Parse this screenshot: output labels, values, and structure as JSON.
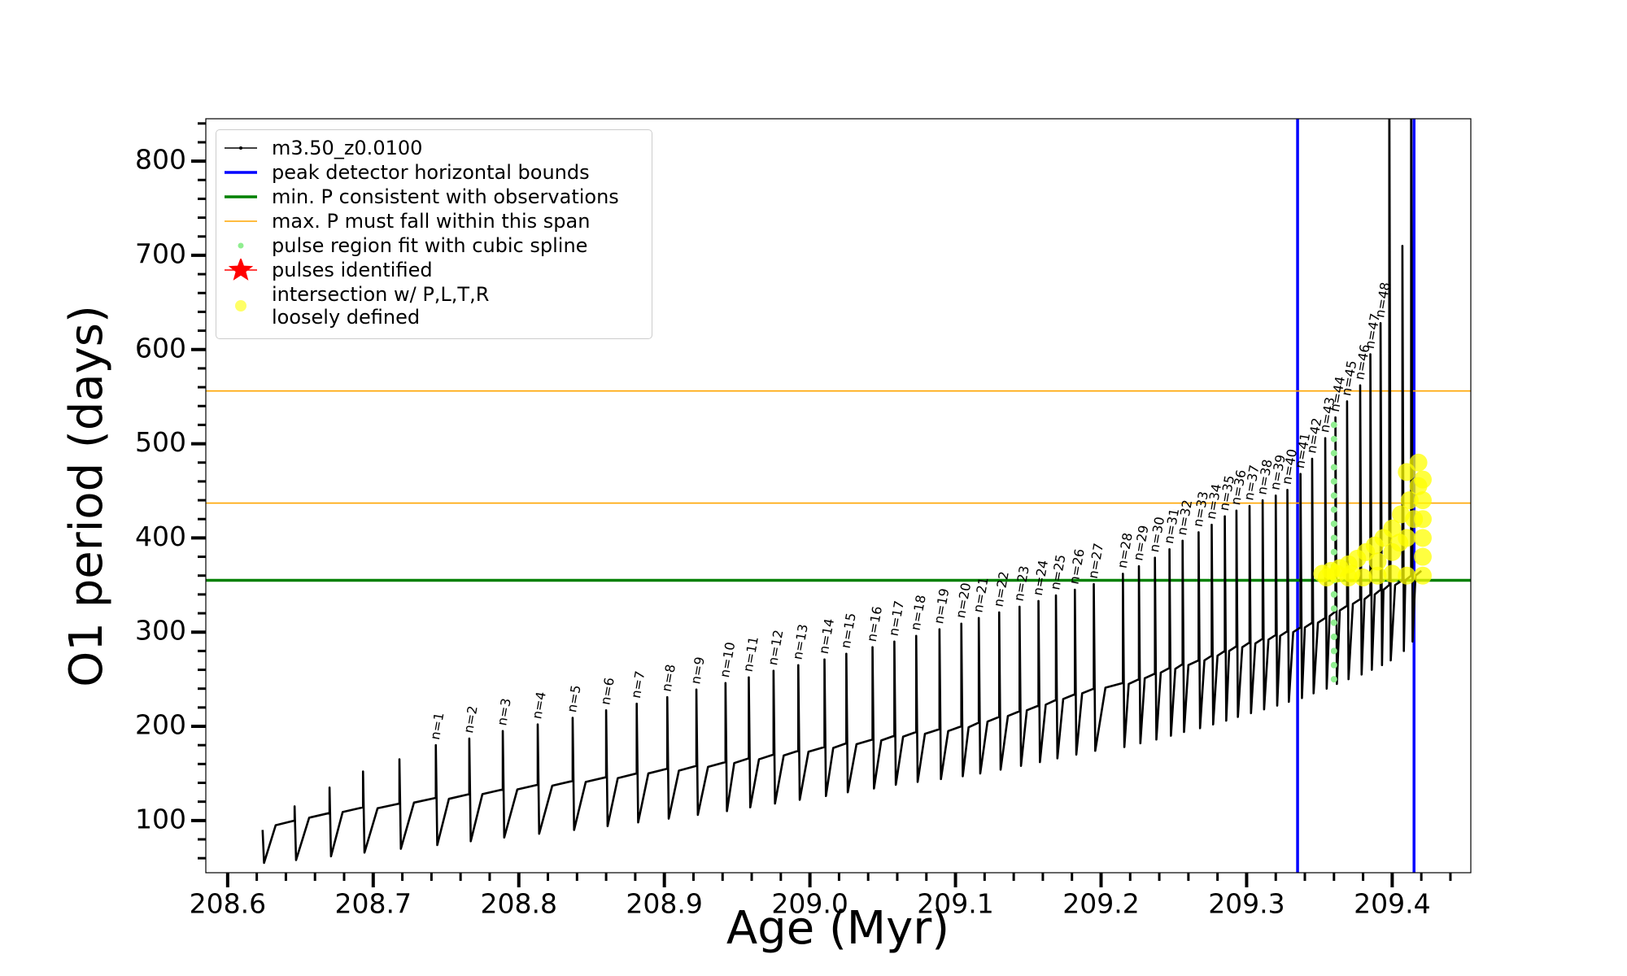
{
  "chart_data": {
    "type": "line",
    "xlabel": "Age (Myr)",
    "ylabel": "O1 period (days)",
    "xlim": [
      208.585,
      209.454
    ],
    "ylim": [
      44.6,
      845
    ],
    "xticks": [
      208.6,
      208.7,
      208.8,
      208.9,
      {
        "value": 209,
        "label": "209.0"
      },
      209.1,
      209.2,
      209.3,
      209.4
    ],
    "yticks": [
      100,
      200,
      300,
      400,
      500,
      600,
      700,
      800
    ],
    "xticks_minor": [
      208.62,
      208.64,
      208.66,
      208.68,
      208.72,
      208.74,
      208.76,
      208.78,
      208.82,
      208.84,
      208.86,
      208.88,
      208.92,
      208.94,
      208.96,
      208.98,
      209.02,
      209.04,
      209.06,
      209.08,
      209.12,
      209.14,
      209.16,
      209.18,
      209.22,
      209.24,
      209.26,
      209.28,
      209.32,
      209.34,
      209.36,
      209.38,
      209.42,
      209.44
    ],
    "yticks_minor": [
      60,
      80,
      120,
      140,
      160,
      180,
      220,
      240,
      260,
      280,
      320,
      340,
      360,
      380,
      420,
      440,
      460,
      480,
      520,
      540,
      560,
      580,
      620,
      640,
      660,
      680,
      720,
      740,
      760,
      780,
      820,
      840
    ],
    "grid": false,
    "legend": "upper left",
    "series": [
      {
        "name": "m3.50_z0.0100",
        "type": "line",
        "color": "#000000",
        "x": [
          208.624,
          208.625,
          208.633,
          208.646,
          208.646,
          208.647,
          208.656,
          208.67,
          208.67,
          208.671,
          208.679,
          208.693,
          208.693,
          208.694,
          208.703,
          208.718,
          208.718,
          208.719,
          208.728,
          208.743,
          208.743,
          208.744,
          208.752,
          208.766,
          208.766,
          208.767,
          208.775,
          208.789,
          208.789,
          208.79,
          208.799,
          208.813,
          208.813,
          208.814,
          208.823,
          208.837,
          208.837,
          208.838,
          208.846,
          208.86,
          208.86,
          208.861,
          208.868,
          208.881,
          208.881,
          208.882,
          208.889,
          208.902,
          208.902,
          208.903,
          208.91,
          208.922,
          208.922,
          208.923,
          208.93,
          208.942,
          208.942,
          208.943,
          208.948,
          208.958,
          208.958,
          208.959,
          208.965,
          208.975,
          208.975,
          208.976,
          208.982,
          208.992,
          208.992,
          208.993,
          208.999,
          209.01,
          209.01,
          209.011,
          209.016,
          209.025,
          209.025,
          209.026,
          209.032,
          209.043,
          209.043,
          209.044,
          209.049,
          209.058,
          209.058,
          209.059,
          209.064,
          209.073,
          209.073,
          209.074,
          209.079,
          209.089,
          209.089,
          209.09,
          209.095,
          209.104,
          209.104,
          209.105,
          209.109,
          209.116,
          209.116,
          209.117,
          209.122,
          209.13,
          209.13,
          209.131,
          209.136,
          209.144,
          209.144,
          209.145,
          209.149,
          209.157,
          209.157,
          209.158,
          209.162,
          209.169,
          209.169,
          209.17,
          209.174,
          209.182,
          209.182,
          209.183,
          209.187,
          209.195,
          209.195,
          209.196,
          209.203,
          209.215,
          209.215,
          209.216,
          209.219,
          209.226,
          209.226,
          209.227,
          209.23,
          209.237,
          209.237,
          209.238,
          209.241,
          209.247,
          209.247,
          209.248,
          209.251,
          209.256,
          209.256,
          209.257,
          209.26,
          209.267,
          209.267,
          209.268,
          209.271,
          209.276,
          209.276,
          209.277,
          209.28,
          209.285,
          209.285,
          209.286,
          209.288,
          209.293,
          209.293,
          209.294,
          209.297,
          209.302,
          209.302,
          209.303,
          209.306,
          209.311,
          209.311,
          209.312,
          209.315,
          209.32,
          209.32,
          209.321,
          209.323,
          209.328,
          209.328,
          209.329,
          209.332,
          209.337,
          209.337,
          209.338,
          209.34,
          209.345,
          209.345,
          209.346,
          209.349,
          209.354,
          209.354,
          209.355,
          209.357,
          209.361,
          209.361,
          209.362,
          209.364,
          209.369,
          209.369,
          209.37,
          209.373,
          209.378,
          209.378,
          209.379,
          209.381,
          209.385,
          209.385,
          209.386,
          209.388,
          209.392,
          209.392,
          209.393,
          209.394,
          209.398,
          209.398,
          209.399,
          209.402,
          209.407,
          209.407,
          209.408,
          209.409,
          209.413,
          209.413,
          209.414,
          209.416,
          209.42
        ],
        "values": [
          90,
          55,
          95,
          100,
          115,
          58,
          103,
          108,
          135,
          62,
          109,
          114,
          152,
          66,
          113,
          118,
          165,
          70,
          119,
          124,
          180,
          74,
          123,
          128,
          187,
          78,
          128,
          133,
          195,
          82,
          133,
          138,
          202,
          86,
          137,
          142,
          209,
          90,
          141,
          146,
          217,
          94,
          145,
          150,
          224,
          98,
          150,
          155,
          231,
          102,
          153,
          158,
          239,
          106,
          157,
          162,
          246,
          110,
          161,
          166,
          252,
          114,
          165,
          170,
          259,
          118,
          169,
          174,
          265,
          122,
          173,
          178,
          271,
          126,
          177,
          182,
          277,
          130,
          181,
          186,
          284,
          134,
          185,
          190,
          290,
          138,
          189,
          194,
          296,
          141,
          192,
          197,
          303,
          144,
          195,
          200,
          309,
          147,
          199,
          204,
          315,
          150,
          205,
          210,
          321,
          154,
          211,
          216,
          327,
          158,
          217,
          222,
          333,
          162,
          223,
          228,
          339,
          166,
          229,
          234,
          345,
          170,
          235,
          240,
          351,
          174,
          241,
          246,
          362,
          178,
          245,
          250,
          370,
          182,
          251,
          256,
          379,
          186,
          257,
          262,
          388,
          190,
          261,
          266,
          397,
          194,
          265,
          270,
          406,
          198,
          270,
          275,
          414,
          202,
          275,
          280,
          423,
          206,
          280,
          285,
          429,
          210,
          284,
          289,
          434,
          214,
          288,
          293,
          440,
          218,
          292,
          297,
          445,
          222,
          296,
          301,
          451,
          226,
          300,
          305,
          468,
          230,
          305,
          310,
          484,
          235,
          310,
          315,
          506,
          240,
          317,
          322,
          528,
          245,
          323,
          328,
          545,
          250,
          330,
          335,
          562,
          255,
          335,
          340,
          595,
          260,
          340,
          345,
          628,
          265,
          345,
          350,
          900,
          270,
          350,
          355,
          710,
          280,
          355,
          360,
          900,
          290,
          360,
          365
        ]
      },
      {
        "name": "peak detector horizontal bounds",
        "type": "vline",
        "color": "#0000ff",
        "x": [
          209.335,
          209.415
        ]
      },
      {
        "name": "min. P consistent with observations",
        "type": "hline",
        "color": "#008000",
        "values": [
          355
        ]
      },
      {
        "name": "max. P must fall within this span",
        "type": "hline",
        "color": "#ffa500",
        "values": [
          437,
          556
        ]
      },
      {
        "name": "pulse region fit with cubic spline",
        "type": "scatter",
        "color": "#90ee90",
        "x": [
          209.36,
          209.36,
          209.36,
          209.36,
          209.36,
          209.36,
          209.36,
          209.36,
          209.36,
          209.36,
          209.36,
          209.36,
          209.36,
          209.36,
          209.36,
          209.36,
          209.36,
          209.36,
          209.36
        ],
        "values": [
          250,
          265,
          280,
          295,
          310,
          325,
          340,
          355,
          370,
          385,
          400,
          415,
          430,
          445,
          460,
          475,
          490,
          505,
          520
        ]
      },
      {
        "name": "pulses identified",
        "type": "star",
        "color": "#ff0000",
        "x": [],
        "values": []
      },
      {
        "name": "intersection w/ P,L,T,R\nloosely defined",
        "type": "scatter",
        "color": "#ffff00",
        "x": [
          209.352,
          209.358,
          209.364,
          209.37,
          209.376,
          209.382,
          209.388,
          209.394,
          209.4,
          209.406,
          209.412,
          209.418,
          209.421,
          209.421,
          209.421,
          209.421,
          209.421,
          209.421,
          209.41,
          209.4,
          209.39,
          209.38,
          209.37,
          209.41,
          209.4,
          209.39,
          209.415,
          209.405,
          209.418,
          209.41,
          209.362,
          209.372,
          209.355
        ],
        "values": [
          362,
          365,
          368,
          372,
          378,
          385,
          392,
          400,
          410,
          425,
          440,
          455,
          462,
          440,
          420,
          400,
          380,
          360,
          360,
          362,
          360,
          358,
          358,
          400,
          385,
          375,
          420,
          395,
          480,
          470,
          362,
          362,
          358
        ]
      }
    ],
    "annotations": [
      {
        "text": "n=1",
        "x": 208.743,
        "y": 180
      },
      {
        "text": "n=2",
        "x": 208.766,
        "y": 187
      },
      {
        "text": "n=3",
        "x": 208.789,
        "y": 195
      },
      {
        "text": "n=4",
        "x": 208.813,
        "y": 202
      },
      {
        "text": "n=5",
        "x": 208.837,
        "y": 209
      },
      {
        "text": "n=6",
        "x": 208.86,
        "y": 217
      },
      {
        "text": "n=7",
        "x": 208.881,
        "y": 224
      },
      {
        "text": "n=8",
        "x": 208.902,
        "y": 231
      },
      {
        "text": "n=9",
        "x": 208.922,
        "y": 239
      },
      {
        "text": "n=10",
        "x": 208.942,
        "y": 246
      },
      {
        "text": "n=11",
        "x": 208.958,
        "y": 252
      },
      {
        "text": "n=12",
        "x": 208.975,
        "y": 259
      },
      {
        "text": "n=13",
        "x": 208.992,
        "y": 265
      },
      {
        "text": "n=14",
        "x": 209.01,
        "y": 271
      },
      {
        "text": "n=15",
        "x": 209.025,
        "y": 277
      },
      {
        "text": "n=16",
        "x": 209.043,
        "y": 284
      },
      {
        "text": "n=17",
        "x": 209.058,
        "y": 290
      },
      {
        "text": "n=18",
        "x": 209.073,
        "y": 296
      },
      {
        "text": "n=19",
        "x": 209.089,
        "y": 303
      },
      {
        "text": "n=20",
        "x": 209.104,
        "y": 309
      },
      {
        "text": "n=21",
        "x": 209.116,
        "y": 315
      },
      {
        "text": "n=22",
        "x": 209.13,
        "y": 321
      },
      {
        "text": "n=23",
        "x": 209.144,
        "y": 327
      },
      {
        "text": "n=24",
        "x": 209.157,
        "y": 333
      },
      {
        "text": "n=25",
        "x": 209.169,
        "y": 339
      },
      {
        "text": "n=26",
        "x": 209.182,
        "y": 345
      },
      {
        "text": "n=27",
        "x": 209.195,
        "y": 351
      },
      {
        "text": "n=28",
        "x": 209.215,
        "y": 362
      },
      {
        "text": "n=29",
        "x": 209.226,
        "y": 370
      },
      {
        "text": "n=30",
        "x": 209.237,
        "y": 379
      },
      {
        "text": "n=31",
        "x": 209.247,
        "y": 388
      },
      {
        "text": "n=32",
        "x": 209.256,
        "y": 397
      },
      {
        "text": "n=33",
        "x": 209.267,
        "y": 406
      },
      {
        "text": "n=34",
        "x": 209.276,
        "y": 414
      },
      {
        "text": "n=35",
        "x": 209.285,
        "y": 423
      },
      {
        "text": "n=36",
        "x": 209.293,
        "y": 429
      },
      {
        "text": "n=37",
        "x": 209.302,
        "y": 434
      },
      {
        "text": "n=38",
        "x": 209.311,
        "y": 440
      },
      {
        "text": "n=39",
        "x": 209.32,
        "y": 445
      },
      {
        "text": "n=40",
        "x": 209.328,
        "y": 451
      },
      {
        "text": "n=41",
        "x": 209.337,
        "y": 468
      },
      {
        "text": "n=42",
        "x": 209.345,
        "y": 484
      },
      {
        "text": "n=43",
        "x": 209.354,
        "y": 506
      },
      {
        "text": "n=44",
        "x": 209.361,
        "y": 528
      },
      {
        "text": "n=45",
        "x": 209.369,
        "y": 545
      },
      {
        "text": "n=46",
        "x": 209.378,
        "y": 562
      },
      {
        "text": "n=47",
        "x": 209.385,
        "y": 595
      },
      {
        "text": "n=48",
        "x": 209.392,
        "y": 628
      }
    ]
  }
}
